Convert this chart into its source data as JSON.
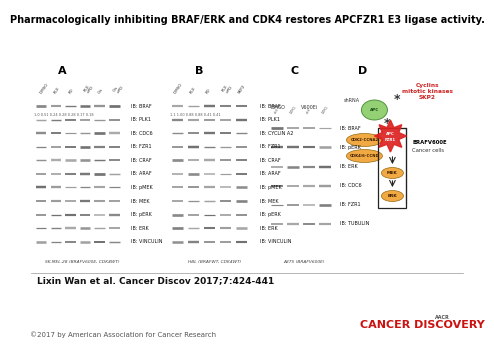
{
  "title": "Pharmacologically inhibiting BRAF/ERK and CDK4 restores APCFZR1 E3 ligase activity.",
  "title_fontsize": 7.0,
  "citation": "Lixin Wan et al. Cancer Discov 2017;7:424-441",
  "citation_fontsize": 6.5,
  "copyright": "©2017 by American Association for Cancer Research",
  "copyright_fontsize": 5.0,
  "journal_name": "CANCER DISCOVERY",
  "journal_fontsize": 8.0,
  "bg_color": "#ffffff",
  "panel_labels": [
    "A",
    "B",
    "C",
    "D"
  ],
  "panel_label_fontsize": 8,
  "panel_A_subtitle": "SK-MEL-28 (BRAFV600E, CDK4WT)",
  "panel_B_subtitle": "HBL (BRAFWT, CDK4WT)",
  "panel_C_subtitle": "A375 (BRAFV600E)",
  "panel_A_bands": [
    "IB: BRAF",
    "IB: PLK1",
    "IB: CDC6",
    "IB: FZR1",
    "IB: CRAF",
    "IB: ARAF",
    "IB: pMEK",
    "IB: MEK",
    "IB: pERK",
    "IB: ERK",
    "IB: VINCULIN"
  ],
  "panel_B_bands": [
    "IB: BRAF",
    "IB: PLK1",
    "IB: CYCLIN A2",
    "IB: FZR1",
    "IB: CRAF",
    "IB: ARAF",
    "IB: pMEK",
    "IB: MEK",
    "IB: pERK",
    "IB: ERK",
    "IB: VINCULIN"
  ],
  "panel_C_bands": [
    "IB: BRAF",
    "IB: pERK",
    "IB: ERK",
    "IB: CDC6",
    "IB: FZR1",
    "IB: TUBULIN"
  ],
  "band_label_fontsize": 3.5,
  "col_header_fontsize": 3.0,
  "subtitle_fontsize": 3.2,
  "diagram_cyclin_color": "#88cc66",
  "diagram_cdk_color": "#f0a030",
  "diagram_apc_color": "#dd2222",
  "diagram_mek_color": "#f0a030",
  "diagram_erk_color": "#f0a030",
  "diagram_red_text": "#cc2222",
  "separator_color": "#999999"
}
